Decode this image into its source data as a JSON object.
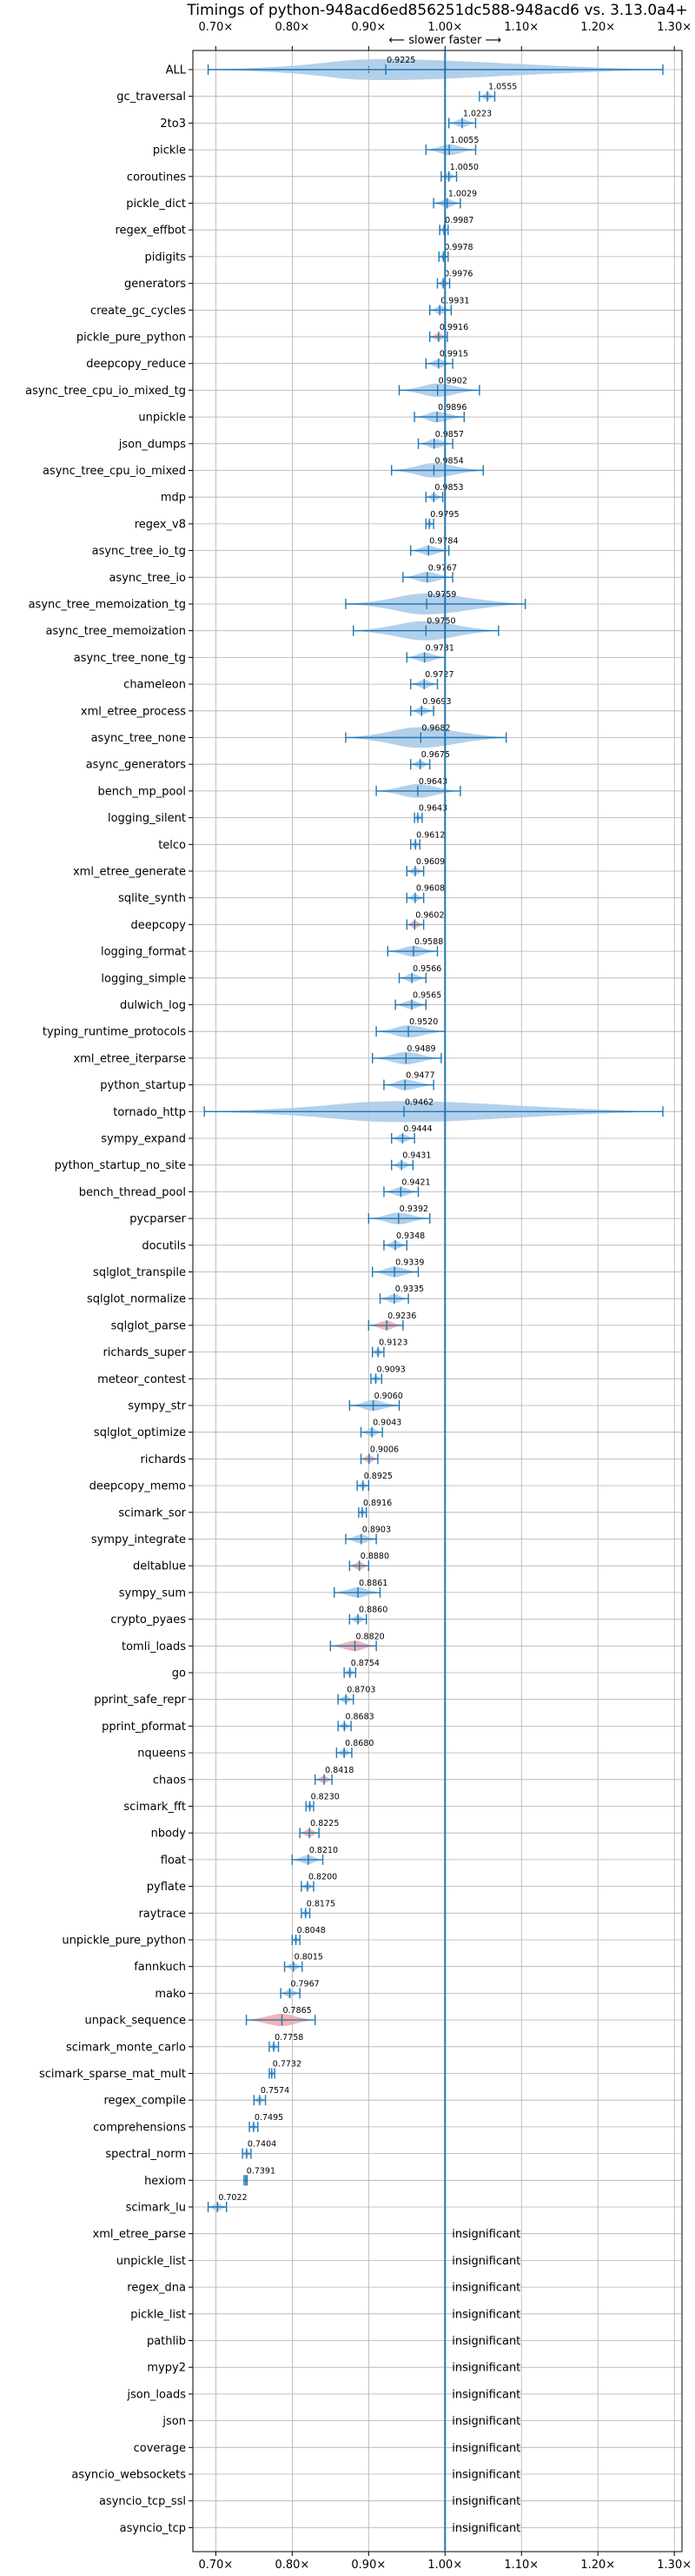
{
  "chart_data": {
    "type": "violin",
    "title": "Timings of python-948acd6ed856251dc588-948acd6 vs. 3.13.0a4+",
    "direction_label": "⟵ slower   faster ⟶",
    "xlim": [
      0.67,
      1.31
    ],
    "xticks": [
      0.7,
      0.8,
      0.9,
      1.0,
      1.1,
      1.2,
      1.3
    ],
    "xtick_labels": [
      "0.70×",
      "0.80×",
      "0.90×",
      "1.00×",
      "1.10×",
      "1.20×",
      "1.30×"
    ],
    "reference_line": 1.0,
    "grid": true,
    "colors": {
      "violin": "#a6c8e8",
      "significant_violin": "#f4a6a6",
      "line": "#1f77b4"
    },
    "insignificant_label": "insignificant",
    "benchmarks": [
      {
        "name": "ALL",
        "value": 0.9225,
        "label": "0.9225",
        "low": 0.69,
        "high": 1.285,
        "q1": 0.9,
        "q3": 1.0
      },
      {
        "name": "gc_traversal",
        "value": 1.0555,
        "label": "1.0555",
        "low": 1.045,
        "high": 1.065
      },
      {
        "name": "2to3",
        "value": 1.0223,
        "label": "1.0223",
        "low": 1.005,
        "high": 1.04
      },
      {
        "name": "pickle",
        "value": 1.0055,
        "label": "1.0055",
        "low": 0.975,
        "high": 1.04
      },
      {
        "name": "coroutines",
        "value": 1.005,
        "label": "1.0050",
        "low": 0.995,
        "high": 1.015
      },
      {
        "name": "pickle_dict",
        "value": 1.0029,
        "label": "1.0029",
        "low": 0.985,
        "high": 1.02
      },
      {
        "name": "regex_effbot",
        "value": 0.9987,
        "label": "0.9987",
        "low": 0.993,
        "high": 1.004
      },
      {
        "name": "pidigits",
        "value": 0.9978,
        "label": "0.9978",
        "low": 0.992,
        "high": 1.004
      },
      {
        "name": "generators",
        "value": 0.9976,
        "label": "0.9976",
        "low": 0.99,
        "high": 1.006
      },
      {
        "name": "create_gc_cycles",
        "value": 0.9931,
        "label": "0.9931",
        "low": 0.98,
        "high": 1.008
      },
      {
        "name": "pickle_pure_python",
        "value": 0.9916,
        "label": "0.9916",
        "low": 0.98,
        "high": 1.003,
        "significant": true
      },
      {
        "name": "deepcopy_reduce",
        "value": 0.9915,
        "label": "0.9915",
        "low": 0.975,
        "high": 1.01
      },
      {
        "name": "async_tree_cpu_io_mixed_tg",
        "value": 0.9902,
        "label": "0.9902",
        "low": 0.94,
        "high": 1.045
      },
      {
        "name": "unpickle",
        "value": 0.9896,
        "label": "0.9896",
        "low": 0.96,
        "high": 1.025
      },
      {
        "name": "json_dumps",
        "value": 0.9857,
        "label": "0.9857",
        "low": 0.965,
        "high": 1.01
      },
      {
        "name": "async_tree_cpu_io_mixed",
        "value": 0.9854,
        "label": "0.9854",
        "low": 0.93,
        "high": 1.05
      },
      {
        "name": "mdp",
        "value": 0.9853,
        "label": "0.9853",
        "low": 0.975,
        "high": 0.997
      },
      {
        "name": "regex_v8",
        "value": 0.9795,
        "label": "0.9795",
        "low": 0.975,
        "high": 0.985
      },
      {
        "name": "async_tree_io_tg",
        "value": 0.9784,
        "label": "0.9784",
        "low": 0.955,
        "high": 1.005
      },
      {
        "name": "async_tree_io",
        "value": 0.9767,
        "label": "0.9767",
        "low": 0.945,
        "high": 1.01
      },
      {
        "name": "async_tree_memoization_tg",
        "value": 0.9759,
        "label": "0.9759",
        "low": 0.87,
        "high": 1.105
      },
      {
        "name": "async_tree_memoization",
        "value": 0.975,
        "label": "0.9750",
        "low": 0.88,
        "high": 1.07
      },
      {
        "name": "async_tree_none_tg",
        "value": 0.9731,
        "label": "0.9731",
        "low": 0.95,
        "high": 1.0
      },
      {
        "name": "chameleon",
        "value": 0.9727,
        "label": "0.9727",
        "low": 0.955,
        "high": 0.99
      },
      {
        "name": "xml_etree_process",
        "value": 0.9693,
        "label": "0.9693",
        "low": 0.955,
        "high": 0.985
      },
      {
        "name": "async_tree_none",
        "value": 0.9682,
        "label": "0.9682",
        "low": 0.87,
        "high": 1.08
      },
      {
        "name": "async_generators",
        "value": 0.9675,
        "label": "0.9675",
        "low": 0.955,
        "high": 0.98
      },
      {
        "name": "bench_mp_pool",
        "value": 0.9643,
        "label": "0.9643",
        "low": 0.91,
        "high": 1.02
      },
      {
        "name": "logging_silent",
        "value": 0.9643,
        "label": "0.9643",
        "low": 0.96,
        "high": 0.97
      },
      {
        "name": "telco",
        "value": 0.9612,
        "label": "0.9612",
        "low": 0.955,
        "high": 0.967
      },
      {
        "name": "xml_etree_generate",
        "value": 0.9609,
        "label": "0.9609",
        "low": 0.95,
        "high": 0.972
      },
      {
        "name": "sqlite_synth",
        "value": 0.9608,
        "label": "0.9608",
        "low": 0.95,
        "high": 0.972
      },
      {
        "name": "deepcopy",
        "value": 0.9602,
        "label": "0.9602",
        "low": 0.95,
        "high": 0.972,
        "significant": true
      },
      {
        "name": "logging_format",
        "value": 0.9588,
        "label": "0.9588",
        "low": 0.925,
        "high": 0.99
      },
      {
        "name": "logging_simple",
        "value": 0.9566,
        "label": "0.9566",
        "low": 0.94,
        "high": 0.975
      },
      {
        "name": "dulwich_log",
        "value": 0.9565,
        "label": "0.9565",
        "low": 0.935,
        "high": 0.975
      },
      {
        "name": "typing_runtime_protocols",
        "value": 0.952,
        "label": "0.9520",
        "low": 0.91,
        "high": 1.0
      },
      {
        "name": "xml_etree_iterparse",
        "value": 0.9489,
        "label": "0.9489",
        "low": 0.905,
        "high": 0.995
      },
      {
        "name": "python_startup",
        "value": 0.9477,
        "label": "0.9477",
        "low": 0.92,
        "high": 0.985
      },
      {
        "name": "tornado_http",
        "value": 0.9462,
        "label": "0.9462",
        "low": 0.685,
        "high": 1.285
      },
      {
        "name": "sympy_expand",
        "value": 0.9444,
        "label": "0.9444",
        "low": 0.93,
        "high": 0.96
      },
      {
        "name": "python_startup_no_site",
        "value": 0.9431,
        "label": "0.9431",
        "low": 0.93,
        "high": 0.958
      },
      {
        "name": "bench_thread_pool",
        "value": 0.9421,
        "label": "0.9421",
        "low": 0.92,
        "high": 0.965
      },
      {
        "name": "pycparser",
        "value": 0.9392,
        "label": "0.9392",
        "low": 0.9,
        "high": 0.98
      },
      {
        "name": "docutils",
        "value": 0.9348,
        "label": "0.9348",
        "low": 0.92,
        "high": 0.95
      },
      {
        "name": "sqlglot_transpile",
        "value": 0.9339,
        "label": "0.9339",
        "low": 0.905,
        "high": 0.965
      },
      {
        "name": "sqlglot_normalize",
        "value": 0.9335,
        "label": "0.9335",
        "low": 0.915,
        "high": 0.952
      },
      {
        "name": "sqlglot_parse",
        "value": 0.9236,
        "label": "0.9236",
        "low": 0.9,
        "high": 0.945,
        "significant": true
      },
      {
        "name": "richards_super",
        "value": 0.9123,
        "label": "0.9123",
        "low": 0.905,
        "high": 0.92
      },
      {
        "name": "meteor_contest",
        "value": 0.9093,
        "label": "0.9093",
        "low": 0.903,
        "high": 0.917
      },
      {
        "name": "sympy_str",
        "value": 0.906,
        "label": "0.9060",
        "low": 0.875,
        "high": 0.94
      },
      {
        "name": "sqlglot_optimize",
        "value": 0.9043,
        "label": "0.9043",
        "low": 0.89,
        "high": 0.918
      },
      {
        "name": "richards",
        "value": 0.9006,
        "label": "0.9006",
        "low": 0.89,
        "high": 0.912,
        "significant": true
      },
      {
        "name": "deepcopy_memo",
        "value": 0.8925,
        "label": "0.8925",
        "low": 0.885,
        "high": 0.9
      },
      {
        "name": "scimark_sor",
        "value": 0.8916,
        "label": "0.8916",
        "low": 0.887,
        "high": 0.897
      },
      {
        "name": "sympy_integrate",
        "value": 0.8903,
        "label": "0.8903",
        "low": 0.87,
        "high": 0.91
      },
      {
        "name": "deltablue",
        "value": 0.888,
        "label": "0.8880",
        "low": 0.875,
        "high": 0.9,
        "significant": true
      },
      {
        "name": "sympy_sum",
        "value": 0.8861,
        "label": "0.8861",
        "low": 0.855,
        "high": 0.915
      },
      {
        "name": "crypto_pyaes",
        "value": 0.886,
        "label": "0.8860",
        "low": 0.875,
        "high": 0.897
      },
      {
        "name": "tomli_loads",
        "value": 0.882,
        "label": "0.8820",
        "low": 0.85,
        "high": 0.91,
        "significant": true
      },
      {
        "name": "go",
        "value": 0.8754,
        "label": "0.8754",
        "low": 0.868,
        "high": 0.883
      },
      {
        "name": "pprint_safe_repr",
        "value": 0.8703,
        "label": "0.8703",
        "low": 0.86,
        "high": 0.88
      },
      {
        "name": "pprint_pformat",
        "value": 0.8683,
        "label": "0.8683",
        "low": 0.86,
        "high": 0.877
      },
      {
        "name": "nqueens",
        "value": 0.868,
        "label": "0.8680",
        "low": 0.858,
        "high": 0.878
      },
      {
        "name": "chaos",
        "value": 0.8418,
        "label": "0.8418",
        "low": 0.83,
        "high": 0.852,
        "significant": true
      },
      {
        "name": "scimark_fft",
        "value": 0.823,
        "label": "0.8230",
        "low": 0.818,
        "high": 0.828
      },
      {
        "name": "nbody",
        "value": 0.8225,
        "label": "0.8225",
        "low": 0.81,
        "high": 0.835,
        "significant": true
      },
      {
        "name": "float",
        "value": 0.821,
        "label": "0.8210",
        "low": 0.8,
        "high": 0.84
      },
      {
        "name": "pyflate",
        "value": 0.82,
        "label": "0.8200",
        "low": 0.812,
        "high": 0.828
      },
      {
        "name": "raytrace",
        "value": 0.8175,
        "label": "0.8175",
        "low": 0.812,
        "high": 0.823
      },
      {
        "name": "unpickle_pure_python",
        "value": 0.8048,
        "label": "0.8048",
        "low": 0.8,
        "high": 0.81
      },
      {
        "name": "fannkuch",
        "value": 0.8015,
        "label": "0.8015",
        "low": 0.79,
        "high": 0.813
      },
      {
        "name": "mako",
        "value": 0.7967,
        "label": "0.7967",
        "low": 0.785,
        "high": 0.81
      },
      {
        "name": "unpack_sequence",
        "value": 0.7865,
        "label": "0.7865",
        "low": 0.74,
        "high": 0.83,
        "significant": true
      },
      {
        "name": "scimark_monte_carlo",
        "value": 0.7758,
        "label": "0.7758",
        "low": 0.77,
        "high": 0.782
      },
      {
        "name": "scimark_sparse_mat_mult",
        "value": 0.7732,
        "label": "0.7732",
        "low": 0.77,
        "high": 0.777
      },
      {
        "name": "regex_compile",
        "value": 0.7574,
        "label": "0.7574",
        "low": 0.75,
        "high": 0.765
      },
      {
        "name": "comprehensions",
        "value": 0.7495,
        "label": "0.7495",
        "low": 0.744,
        "high": 0.755
      },
      {
        "name": "spectral_norm",
        "value": 0.7404,
        "label": "0.7404",
        "low": 0.735,
        "high": 0.746
      },
      {
        "name": "hexiom",
        "value": 0.7391,
        "label": "0.7391",
        "low": 0.737,
        "high": 0.741
      },
      {
        "name": "scimark_lu",
        "value": 0.7022,
        "label": "0.7022",
        "low": 0.69,
        "high": 0.714
      },
      {
        "name": "xml_etree_parse",
        "insignificant": true
      },
      {
        "name": "unpickle_list",
        "insignificant": true
      },
      {
        "name": "regex_dna",
        "insignificant": true
      },
      {
        "name": "pickle_list",
        "insignificant": true
      },
      {
        "name": "pathlib",
        "insignificant": true
      },
      {
        "name": "mypy2",
        "insignificant": true
      },
      {
        "name": "json_loads",
        "insignificant": true
      },
      {
        "name": "json",
        "insignificant": true
      },
      {
        "name": "coverage",
        "insignificant": true
      },
      {
        "name": "asyncio_websockets",
        "insignificant": true
      },
      {
        "name": "asyncio_tcp_ssl",
        "insignificant": true
      },
      {
        "name": "asyncio_tcp",
        "insignificant": true
      }
    ]
  }
}
